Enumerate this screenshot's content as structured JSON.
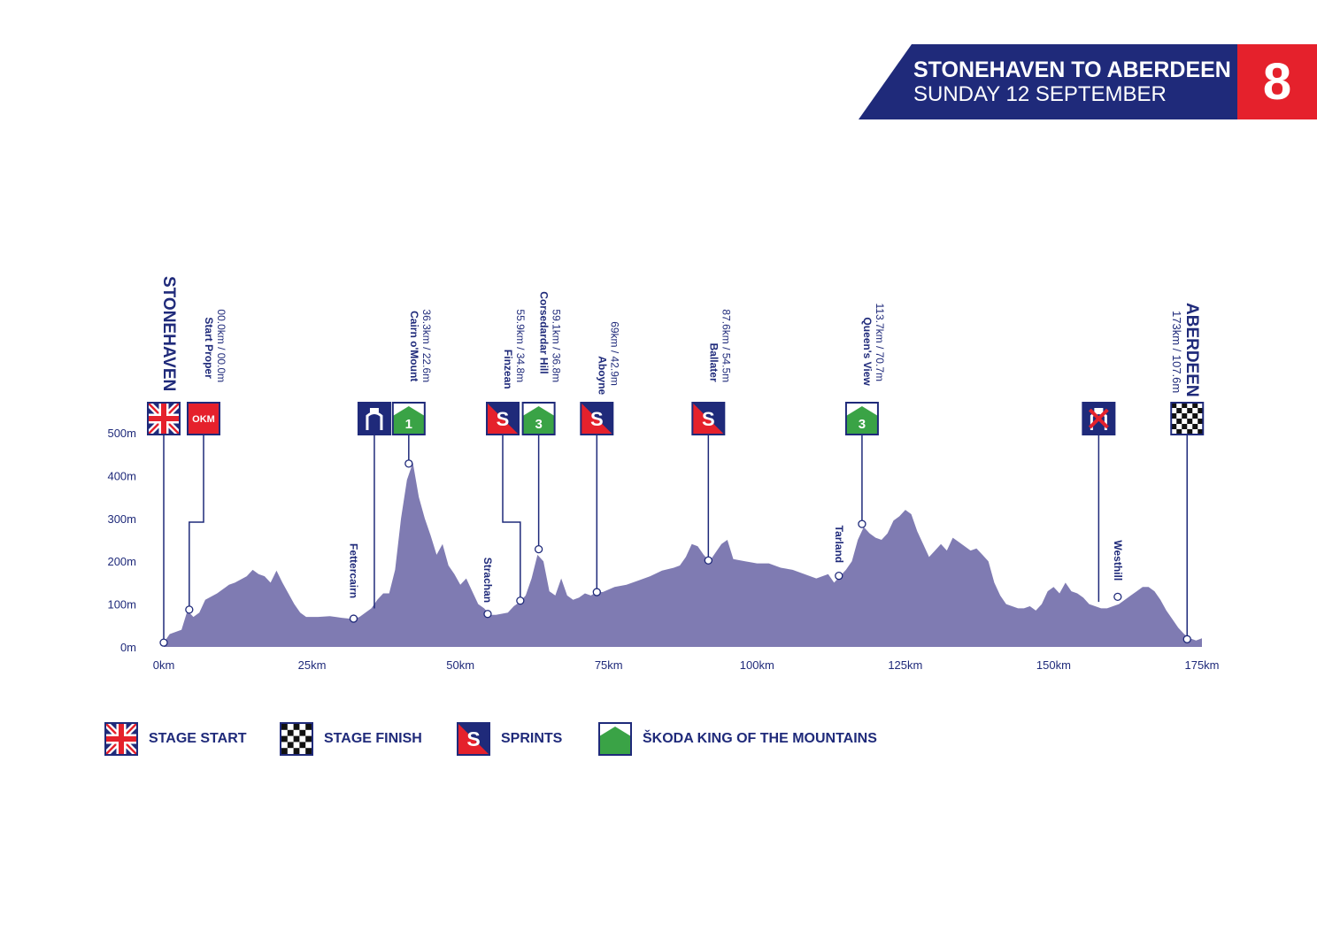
{
  "header": {
    "title": "STONEHAVEN TO ABERDEEN",
    "subtitle": "SUNDAY 12 SEPTEMBER",
    "stage_number": "8"
  },
  "colors": {
    "navy": "#1f2a7a",
    "red": "#e5212c",
    "profile_fill": "#7f7bb2",
    "kom_green": "#3aa346"
  },
  "chart_data": {
    "type": "area",
    "xlabel": "",
    "ylabel": "",
    "xlim": [
      0,
      175
    ],
    "ylim": [
      0,
      500
    ],
    "x_ticks": [
      0,
      25,
      50,
      75,
      100,
      125,
      150,
      175
    ],
    "x_tick_labels": [
      "0km",
      "25km",
      "50km",
      "75km",
      "100km",
      "125km",
      "150km",
      "175km"
    ],
    "y_ticks": [
      0,
      100,
      200,
      300,
      400,
      500
    ],
    "y_tick_labels": [
      "0m",
      "100m",
      "200m",
      "300m",
      "400m",
      "500m"
    ],
    "elevation": [
      [
        0,
        10
      ],
      [
        1,
        30
      ],
      [
        3,
        40
      ],
      [
        4,
        85
      ],
      [
        5,
        70
      ],
      [
        6,
        80
      ],
      [
        7,
        110
      ],
      [
        9,
        125
      ],
      [
        11,
        145
      ],
      [
        12,
        150
      ],
      [
        14,
        165
      ],
      [
        15,
        180
      ],
      [
        16,
        170
      ],
      [
        17,
        165
      ],
      [
        18,
        150
      ],
      [
        19,
        178
      ],
      [
        20,
        150
      ],
      [
        21,
        125
      ],
      [
        22,
        100
      ],
      [
        23,
        80
      ],
      [
        24,
        70
      ],
      [
        26,
        70
      ],
      [
        28,
        72
      ],
      [
        30,
        68
      ],
      [
        32,
        65
      ],
      [
        33,
        70
      ],
      [
        34,
        80
      ],
      [
        35,
        90
      ],
      [
        36,
        110
      ],
      [
        37,
        125
      ],
      [
        38,
        125
      ],
      [
        39,
        180
      ],
      [
        40,
        300
      ],
      [
        41,
        390
      ],
      [
        42,
        430
      ],
      [
        43,
        350
      ],
      [
        44,
        300
      ],
      [
        45,
        260
      ],
      [
        46,
        215
      ],
      [
        47,
        240
      ],
      [
        48,
        190
      ],
      [
        49,
        170
      ],
      [
        50,
        145
      ],
      [
        51,
        160
      ],
      [
        52,
        130
      ],
      [
        53,
        100
      ],
      [
        54,
        90
      ],
      [
        55,
        75
      ],
      [
        56,
        75
      ],
      [
        58,
        80
      ],
      [
        59,
        95
      ],
      [
        60,
        105
      ],
      [
        61,
        120
      ],
      [
        62,
        160
      ],
      [
        63,
        215
      ],
      [
        64,
        200
      ],
      [
        65,
        130
      ],
      [
        66,
        120
      ],
      [
        67,
        160
      ],
      [
        68,
        120
      ],
      [
        69,
        110
      ],
      [
        70,
        115
      ],
      [
        71,
        125
      ],
      [
        72,
        120
      ],
      [
        73,
        128
      ],
      [
        74,
        128
      ],
      [
        76,
        140
      ],
      [
        78,
        145
      ],
      [
        80,
        155
      ],
      [
        82,
        165
      ],
      [
        84,
        178
      ],
      [
        86,
        185
      ],
      [
        87,
        190
      ],
      [
        88,
        210
      ],
      [
        89,
        240
      ],
      [
        90,
        235
      ],
      [
        91,
        215
      ],
      [
        92,
        200
      ],
      [
        93,
        220
      ],
      [
        94,
        240
      ],
      [
        95,
        250
      ],
      [
        96,
        205
      ],
      [
        98,
        200
      ],
      [
        100,
        195
      ],
      [
        102,
        195
      ],
      [
        104,
        185
      ],
      [
        106,
        180
      ],
      [
        108,
        170
      ],
      [
        110,
        160
      ],
      [
        112,
        170
      ],
      [
        113,
        150
      ],
      [
        114,
        165
      ],
      [
        115,
        180
      ],
      [
        116,
        200
      ],
      [
        117,
        250
      ],
      [
        118,
        280
      ],
      [
        119,
        265
      ],
      [
        120,
        255
      ],
      [
        121,
        250
      ],
      [
        122,
        265
      ],
      [
        123,
        295
      ],
      [
        124,
        305
      ],
      [
        125,
        320
      ],
      [
        126,
        310
      ],
      [
        127,
        270
      ],
      [
        128,
        240
      ],
      [
        129,
        210
      ],
      [
        130,
        225
      ],
      [
        131,
        240
      ],
      [
        132,
        225
      ],
      [
        133,
        255
      ],
      [
        134,
        245
      ],
      [
        135,
        235
      ],
      [
        136,
        225
      ],
      [
        137,
        230
      ],
      [
        138,
        215
      ],
      [
        139,
        200
      ],
      [
        140,
        150
      ],
      [
        141,
        120
      ],
      [
        142,
        100
      ],
      [
        143,
        95
      ],
      [
        144,
        90
      ],
      [
        145,
        90
      ],
      [
        146,
        95
      ],
      [
        147,
        85
      ],
      [
        148,
        100
      ],
      [
        149,
        130
      ],
      [
        150,
        140
      ],
      [
        151,
        125
      ],
      [
        152,
        150
      ],
      [
        153,
        130
      ],
      [
        154,
        125
      ],
      [
        155,
        115
      ],
      [
        156,
        100
      ],
      [
        157,
        95
      ],
      [
        158,
        90
      ],
      [
        159,
        90
      ],
      [
        160,
        95
      ],
      [
        161,
        100
      ],
      [
        162,
        110
      ],
      [
        163,
        120
      ],
      [
        164,
        130
      ],
      [
        165,
        140
      ],
      [
        166,
        140
      ],
      [
        167,
        130
      ],
      [
        168,
        110
      ],
      [
        169,
        85
      ],
      [
        170,
        65
      ],
      [
        171,
        45
      ],
      [
        172,
        30
      ],
      [
        173,
        20
      ],
      [
        174,
        15
      ],
      [
        175,
        20
      ]
    ],
    "locations": [
      {
        "name": "STONEHAVEN",
        "detail": "",
        "km": 0,
        "elev": 10
      },
      {
        "name": "Start Proper",
        "detail": "00.0km / 00.0m",
        "km": 4.3,
        "elev": 87
      },
      {
        "name": "Fettercairn",
        "detail": "",
        "km": 32,
        "elev": 66
      },
      {
        "name": "Cairn o'Mount",
        "detail": "36.3km / 22.6m",
        "km": 41.3,
        "elev": 428
      },
      {
        "name": "Strachan",
        "detail": "",
        "km": 54.6,
        "elev": 77
      },
      {
        "name": "Finzean",
        "detail": "55.9km / 34.8m",
        "km": 60.1,
        "elev": 108
      },
      {
        "name": "Corsedardar Hill",
        "detail": "59.1km / 36.8m",
        "km": 63.2,
        "elev": 228
      },
      {
        "name": "Aboyne",
        "detail": "69km / 42.9m",
        "km": 73,
        "elev": 128
      },
      {
        "name": "Ballater",
        "detail": "87.6km / 54.5m",
        "km": 91.8,
        "elev": 202
      },
      {
        "name": "Tarland",
        "detail": "",
        "km": 113.8,
        "elev": 166
      },
      {
        "name": "Queen's View",
        "detail": "113.7km / 70.7m",
        "km": 117.7,
        "elev": 287
      },
      {
        "name": "Westhill",
        "detail": "",
        "km": 160.8,
        "elev": 117
      },
      {
        "name": "ABERDEEN",
        "detail": "173km / 107.6m",
        "km": 172.5,
        "elev": 18
      }
    ],
    "markers": [
      {
        "type": "start",
        "label": "",
        "km": 0,
        "elev": 10
      },
      {
        "type": "okm",
        "label": "OKM",
        "km": 4.3,
        "elev": 87
      },
      {
        "type": "feed",
        "label": "",
        "km": 35.5,
        "elev": 90
      },
      {
        "type": "kom",
        "label": "1",
        "km": 41.3,
        "elev": 428
      },
      {
        "type": "sprint",
        "label": "S",
        "km": 60.1,
        "elev": 108
      },
      {
        "type": "kom",
        "label": "3",
        "km": 63.2,
        "elev": 228
      },
      {
        "type": "sprint",
        "label": "S",
        "km": 73,
        "elev": 128
      },
      {
        "type": "sprint",
        "label": "S",
        "km": 91.8,
        "elev": 202
      },
      {
        "type": "kom",
        "label": "3",
        "km": 117.7,
        "elev": 287
      },
      {
        "type": "nofeed",
        "label": "",
        "km": 157.6,
        "elev": 105
      },
      {
        "type": "finish",
        "label": "",
        "km": 172.5,
        "elev": 18
      }
    ]
  },
  "legend": {
    "start": "STAGE START",
    "finish": "STAGE FINISH",
    "sprints": "SPRINTS",
    "kom": "ŠKODA KING OF THE MOUNTAINS"
  }
}
